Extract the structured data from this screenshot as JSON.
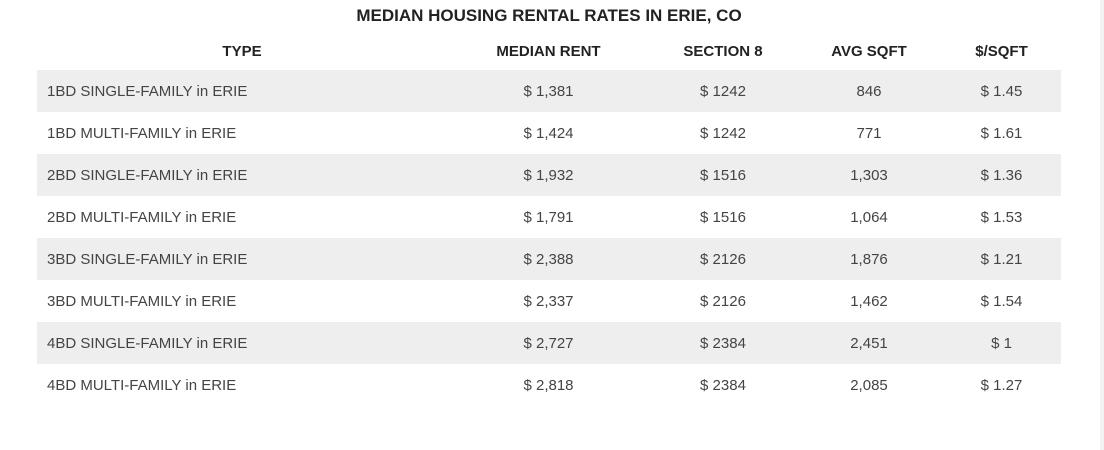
{
  "title": "MEDIAN HOUSING RENTAL RATES IN ERIE, CO",
  "columns": [
    "TYPE",
    "MEDIAN RENT",
    "SECTION 8",
    "AVG SQFT",
    "$/SQFT"
  ],
  "rows": [
    {
      "type": "1BD SINGLE-FAMILY in ERIE",
      "median_rent": "$ 1,381",
      "section8": "$ 1242",
      "avg_sqft": "846",
      "per_sqft": "$ 1.45"
    },
    {
      "type": "1BD MULTI-FAMILY in ERIE",
      "median_rent": "$ 1,424",
      "section8": "$ 1242",
      "avg_sqft": "771",
      "per_sqft": "$ 1.61"
    },
    {
      "type": "2BD SINGLE-FAMILY in ERIE",
      "median_rent": "$ 1,932",
      "section8": "$ 1516",
      "avg_sqft": "1,303",
      "per_sqft": "$ 1.36"
    },
    {
      "type": "2BD MULTI-FAMILY in ERIE",
      "median_rent": "$ 1,791",
      "section8": "$ 1516",
      "avg_sqft": "1,064",
      "per_sqft": "$ 1.53"
    },
    {
      "type": "3BD SINGLE-FAMILY in ERIE",
      "median_rent": "$ 2,388",
      "section8": "$ 2126",
      "avg_sqft": "1,876",
      "per_sqft": "$ 1.21"
    },
    {
      "type": "3BD MULTI-FAMILY in ERIE",
      "median_rent": "$ 2,337",
      "section8": "$ 2126",
      "avg_sqft": "1,462",
      "per_sqft": "$ 1.54"
    },
    {
      "type": "4BD SINGLE-FAMILY in ERIE",
      "median_rent": "$ 2,727",
      "section8": "$ 2384",
      "avg_sqft": "2,451",
      "per_sqft": "$ 1"
    },
    {
      "type": "4BD MULTI-FAMILY in ERIE",
      "median_rent": "$ 2,818",
      "section8": "$ 2384",
      "avg_sqft": "2,085",
      "per_sqft": "$ 1.27"
    }
  ],
  "colors": {
    "stripe": "#eeeeee",
    "text": "#444444",
    "header_text": "#222222"
  }
}
